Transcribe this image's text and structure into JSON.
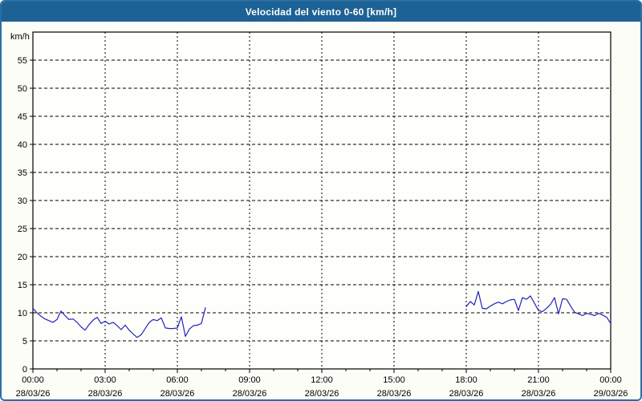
{
  "window": {
    "title": "Velocidad del viento 0-60 [km/h]"
  },
  "colors": {
    "titlebar_bg": "#1d6294",
    "frame_border": "#2a6fa3",
    "content_bg": "#fdfdf7",
    "plot_bg": "#fefefb",
    "grid": "#000000",
    "axis": "#000000",
    "text": "#000000",
    "title_text": "#ffffff",
    "line": "#2222c0"
  },
  "chart_data": {
    "type": "line",
    "title": "Velocidad del viento 0-60 [km/h]",
    "ylabel": "km/h",
    "xlabel": "",
    "ylim": [
      0,
      60
    ],
    "y_ticks": [
      0,
      5,
      10,
      15,
      20,
      25,
      30,
      35,
      40,
      45,
      50,
      55
    ],
    "x_axis_hours": [
      0,
      24
    ],
    "x_minor_tick_hours": 1,
    "grid": "dashed",
    "legend": "none",
    "x_ticks": [
      {
        "hour": 0,
        "time": "00:00",
        "date": "28/03/26"
      },
      {
        "hour": 3,
        "time": "03:00",
        "date": "28/03/26"
      },
      {
        "hour": 6,
        "time": "06:00",
        "date": "28/03/26"
      },
      {
        "hour": 9,
        "time": "09:00",
        "date": "28/03/26"
      },
      {
        "hour": 12,
        "time": "12:00",
        "date": "28/03/26"
      },
      {
        "hour": 15,
        "time": "15:00",
        "date": "28/03/26"
      },
      {
        "hour": 18,
        "time": "18:00",
        "date": "28/03/26"
      },
      {
        "hour": 21,
        "time": "21:00",
        "date": "28/03/26"
      },
      {
        "hour": 24,
        "time": "00:00",
        "date": "29/03/26"
      }
    ],
    "series": [
      {
        "name": "wind-speed-early-morning",
        "start_hour": 0,
        "interval_minutes": 10,
        "values": [
          10.8,
          10.0,
          9.4,
          8.9,
          8.6,
          8.3,
          8.8,
          10.3,
          9.5,
          8.8,
          8.9,
          8.3,
          7.5,
          6.9,
          7.9,
          8.7,
          9.2,
          8.1,
          8.5,
          8.0,
          8.3,
          7.7,
          7.0,
          7.8,
          6.9,
          6.2,
          5.6,
          6.1,
          7.2,
          8.3,
          8.8,
          8.6,
          9.1,
          7.3,
          7.2,
          7.2,
          7.3,
          9.3,
          5.8,
          7.1,
          7.7,
          7.8,
          8.1,
          10.9
        ]
      },
      {
        "name": "wind-speed-evening",
        "start_hour": 18,
        "interval_minutes": 10,
        "values": [
          11.1,
          12.0,
          11.4,
          13.8,
          10.8,
          10.7,
          11.2,
          11.6,
          11.9,
          11.6,
          12.0,
          12.3,
          12.4,
          10.4,
          12.7,
          12.4,
          13.0,
          11.7,
          10.4,
          10.2,
          10.8,
          11.5,
          12.7,
          9.8,
          12.5,
          12.4,
          11.2,
          10.1,
          9.8,
          9.5,
          9.9,
          9.7,
          9.5,
          9.9,
          9.6,
          9.2,
          8.1
        ]
      }
    ]
  }
}
